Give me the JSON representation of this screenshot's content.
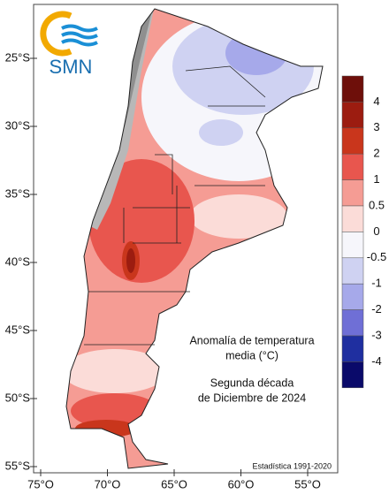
{
  "logo": {
    "text": "SMN"
  },
  "latitude_labels": [
    "25°S",
    "30°S",
    "35°S",
    "40°S",
    "45°S",
    "50°S",
    "55°S"
  ],
  "longitude_labels": [
    "75°O",
    "70°O",
    "65°O",
    "60°O",
    "55°O"
  ],
  "legend": {
    "labels": [
      "4",
      "3",
      "2",
      "1",
      "0.5",
      "0",
      "-0.5",
      "-1",
      "-2",
      "-3",
      "-4"
    ],
    "colors": [
      "#6e0f0a",
      "#9c1c10",
      "#c9361c",
      "#e8564e",
      "#f59c94",
      "#fbdcd8",
      "#f6f6fb",
      "#cfd2f2",
      "#a6a9ea",
      "#6f6fd6",
      "#1f2fa0",
      "#0a0a6a"
    ]
  },
  "annotation": {
    "title_lines": [
      "Anomalía de temperatura",
      "media (°C)"
    ],
    "period_lines": [
      "Segunda década",
      "de Diciembre de 2024"
    ]
  },
  "source": "Estadística 1991-2020"
}
